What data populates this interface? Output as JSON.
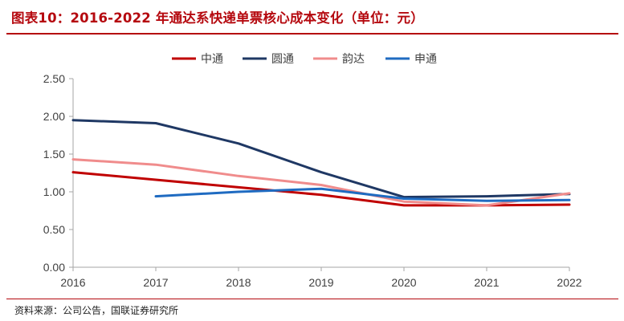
{
  "header": {
    "title": "图表10：2016-2022 年通达系快递单票核心成本变化（单位：元）"
  },
  "footer": {
    "source": "资料来源：公司公告，国联证券研究所"
  },
  "colors": {
    "accent": "#b5090f",
    "axis": "#a6a6a6",
    "tick_text": "#404040"
  },
  "chart_data": {
    "type": "line",
    "title": "",
    "xlabel": "",
    "ylabel": "",
    "x": [
      "2016",
      "2017",
      "2018",
      "2019",
      "2020",
      "2021",
      "2022"
    ],
    "ylim": [
      0,
      2.5
    ],
    "yticks": [
      "0.00",
      "0.50",
      "1.00",
      "1.50",
      "2.00",
      "2.50"
    ],
    "grid": false,
    "legend_position": "top-center",
    "series": [
      {
        "name": "中通",
        "color": "#c00000",
        "values": [
          1.26,
          1.16,
          1.06,
          0.96,
          0.82,
          0.82,
          0.83
        ]
      },
      {
        "name": "圆通",
        "color": "#1f3864",
        "values": [
          1.95,
          1.91,
          1.64,
          1.26,
          0.93,
          0.94,
          0.97
        ]
      },
      {
        "name": "韵达",
        "color": "#f08c8c",
        "values": [
          1.43,
          1.36,
          1.21,
          1.09,
          0.87,
          0.82,
          0.98
        ]
      },
      {
        "name": "申通",
        "color": "#1f6bc1",
        "values": [
          null,
          0.94,
          1.0,
          1.04,
          0.91,
          0.88,
          0.89
        ]
      }
    ]
  }
}
